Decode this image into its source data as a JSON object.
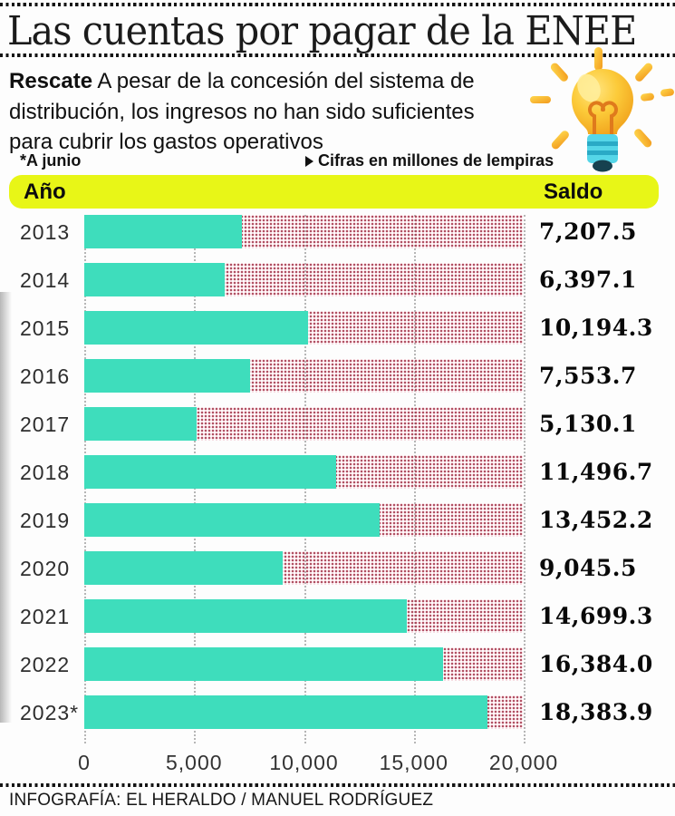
{
  "header": {
    "title": "Las cuentas por pagar de la ENEE",
    "lead_label": "Rescate",
    "lead_lines": [
      "A pesar de la concesión del sistema de",
      "distribución, los ingresos no han sido suficientes",
      "para cubrir los gastos operativos"
    ],
    "note_left": "*A junio",
    "note_right": "Cifras en millones de lempiras"
  },
  "table_header": {
    "year": "Año",
    "value": "Saldo"
  },
  "chart_data": {
    "type": "bar",
    "orientation": "horizontal",
    "title": "Las cuentas por pagar de la ENEE",
    "units": "millones de lempiras",
    "categories": [
      "2013",
      "2014",
      "2015",
      "2016",
      "2017",
      "2018",
      "2019",
      "2020",
      "2021",
      "2022",
      "2023*"
    ],
    "values": [
      7207.5,
      6397.1,
      10194.3,
      7553.7,
      5130.1,
      11496.7,
      13452.2,
      9045.5,
      14699.3,
      16384.0,
      18383.9
    ],
    "value_labels": [
      "7,207.5",
      "6,397.1",
      "10,194.3",
      "7,553.7",
      "5,130.1",
      "11,496.7",
      "13,452.2",
      "9,045.5",
      "14,699.3",
      "16,384.0",
      "18,383.9"
    ],
    "xlim": [
      0,
      20000
    ],
    "x_ticks": [
      "0",
      "5,000",
      "10,000",
      "15,000",
      "20,000"
    ],
    "grid": true,
    "note": "2023 figure is as of June (*A junio)"
  },
  "footer": {
    "credit": "INFOGRAFÍA: EL HERALDO / MANUEL RODRÍGUEZ"
  },
  "colors": {
    "header_bar": "#e8f617",
    "bar": "#3eddbc",
    "remainder_dots": "#96283c",
    "gridline": "#b6b6b6",
    "bulb_yellow": "#f7b31c",
    "bulb_base_cyan": "#55d6e8"
  },
  "icons": {
    "lightbulb": "lightbulb-icon",
    "note_bullet": "right-triangle-icon"
  }
}
